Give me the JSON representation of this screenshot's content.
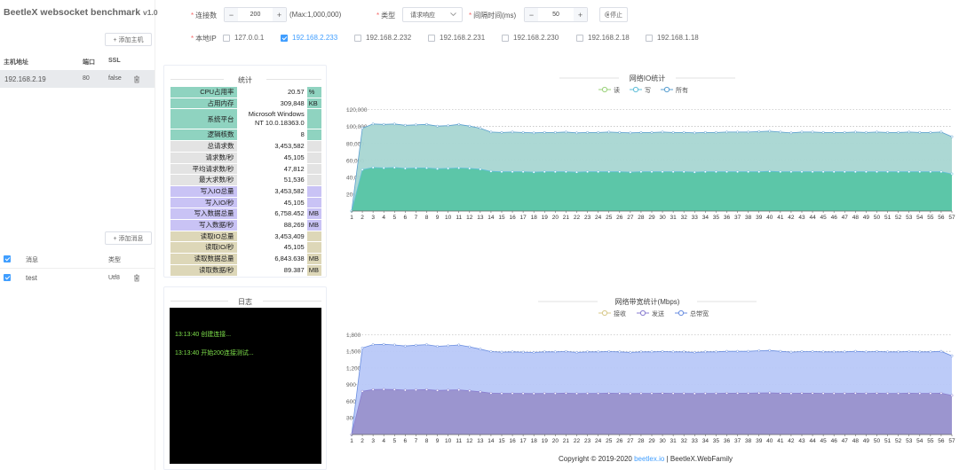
{
  "sidebar": {
    "brand": "BeetleX websocket benchmark",
    "version": "v1.0",
    "add_host_label": "+ 添加主机",
    "host_columns": [
      "主机地址",
      "端口",
      "SSL"
    ],
    "hosts": [
      {
        "address": "192.168.2.19",
        "port": "80",
        "ssl": "false"
      }
    ],
    "add_message_label": "+ 添加消息",
    "message_columns": [
      "消息",
      "类型"
    ],
    "messages": [
      {
        "name": "test",
        "type": "Utf8"
      }
    ]
  },
  "toolbar": {
    "connections_label": "连接数",
    "connections_value": "200",
    "connections_max": "(Max:1,000,000)",
    "type_label": "类型",
    "type_value": "请求响应",
    "interval_label": "间隔时间(ms)",
    "interval_value": "50",
    "stop_label": "停止",
    "local_ip_label": "本地IP",
    "ips": [
      {
        "ip": "127.0.0.1",
        "checked": false
      },
      {
        "ip": "192.168.2.233",
        "checked": true
      },
      {
        "ip": "192.168.2.232",
        "checked": false
      },
      {
        "ip": "192.168.2.231",
        "checked": false
      },
      {
        "ip": "192.168.2.230",
        "checked": false
      },
      {
        "ip": "192.168.2.18",
        "checked": false
      },
      {
        "ip": "192.168.1.18",
        "checked": false
      }
    ]
  },
  "stats": {
    "title": "统计",
    "rows": [
      {
        "key": "CPU占用率",
        "value": "20.57",
        "unit": "%",
        "color": "#8fd3c0"
      },
      {
        "key": "占用内存",
        "value": "309,848",
        "unit": "KB",
        "color": "#8fd3c0"
      },
      {
        "key": "系统平台",
        "value": "Microsoft Windows NT 10.0.18363.0",
        "unit": "",
        "color": "#8fd3c0"
      },
      {
        "key": "逻辑核数",
        "value": "8",
        "unit": "",
        "color": "#8fd3c0"
      },
      {
        "key": "总请求数",
        "value": "3,453,582",
        "unit": "",
        "color": "#e3e3e3"
      },
      {
        "key": "请求数/秒",
        "value": "45,105",
        "unit": "",
        "color": "#e3e3e3"
      },
      {
        "key": "平均请求数/秒",
        "value": "47,812",
        "unit": "",
        "color": "#e3e3e3"
      },
      {
        "key": "最大求数/秒",
        "value": "51,536",
        "unit": "",
        "color": "#e3e3e3"
      },
      {
        "key": "写入IO总量",
        "value": "3,453,582",
        "unit": "",
        "color": "#c9c3f5"
      },
      {
        "key": "写入IO/秒",
        "value": "45,105",
        "unit": "",
        "color": "#c9c3f5"
      },
      {
        "key": "写入数据总量",
        "value": "6,758.452",
        "unit": "MB",
        "color": "#c9c3f5"
      },
      {
        "key": "写入数据/秒",
        "value": "88,269",
        "unit": "MB",
        "color": "#c9c3f5"
      },
      {
        "key": "读取IO总量",
        "value": "3,453,409",
        "unit": "",
        "color": "#ddd7b8"
      },
      {
        "key": "读取IO/秒",
        "value": "45,105",
        "unit": "",
        "color": "#ddd7b8"
      },
      {
        "key": "读取数据总量",
        "value": "6,843.638",
        "unit": "MB",
        "color": "#ddd7b8"
      },
      {
        "key": "读取数据/秒",
        "value": "89.387",
        "unit": "MB",
        "color": "#ddd7b8"
      }
    ]
  },
  "log": {
    "title": "日志",
    "lines": [
      "13:13:40 创建连接...",
      "13:13:40 开始200连接测试..."
    ]
  },
  "footer": {
    "copyright": "Copyright © 2019-2020",
    "link": "beetlex.io",
    "suffix": "| BeetleX.WebFamily"
  },
  "chart_data": [
    {
      "type": "area",
      "title": "网络IO统计",
      "legend": [
        "读",
        "写",
        "所有"
      ],
      "legend_position": "top",
      "colors": [
        "#9ad27a",
        "#61bfd9",
        "#5a9fd0"
      ],
      "fill_colors": [
        "#5cc6a8",
        "#a8d6d2"
      ],
      "x": [
        1,
        2,
        3,
        4,
        5,
        6,
        7,
        8,
        9,
        10,
        11,
        12,
        13,
        14,
        15,
        16,
        17,
        18,
        19,
        20,
        21,
        22,
        23,
        24,
        25,
        26,
        27,
        28,
        29,
        30,
        31,
        32,
        33,
        34,
        35,
        36,
        37,
        38,
        39,
        40,
        41,
        42,
        43,
        44,
        45,
        46,
        47,
        48,
        49,
        50,
        51,
        52,
        53,
        54,
        55,
        56,
        57
      ],
      "yticks": [
        20000,
        40000,
        60000,
        80000,
        100000,
        120000
      ],
      "ytick_labels": [
        "20,000",
        "40,000",
        "60,000",
        "80,000",
        "100,000",
        "120,000"
      ],
      "ylim": [
        0,
        128000
      ],
      "series": [
        {
          "name": "读",
          "values": [
            0,
            49000,
            51500,
            51000,
            51500,
            50500,
            51000,
            51000,
            50000,
            50500,
            51000,
            50500,
            49500,
            47000,
            46500,
            46500,
            46500,
            46000,
            46500,
            46500,
            46500,
            46000,
            46500,
            46500,
            46500,
            46500,
            46000,
            46500,
            46500,
            46500,
            46500,
            46500,
            46000,
            46500,
            46500,
            46500,
            46500,
            46500,
            46500,
            47000,
            46500,
            46500,
            46500,
            46500,
            46500,
            46500,
            46500,
            46500,
            46500,
            46500,
            46500,
            46500,
            46500,
            46500,
            46500,
            46500,
            44000
          ]
        },
        {
          "name": "写",
          "values": [
            0,
            49000,
            51500,
            51000,
            51500,
            50500,
            51000,
            51000,
            50000,
            50500,
            51000,
            50500,
            49500,
            47000,
            46500,
            46500,
            46500,
            46000,
            46500,
            46500,
            46500,
            46000,
            46500,
            46500,
            46500,
            46500,
            46000,
            46500,
            46500,
            46500,
            46500,
            46500,
            46000,
            46500,
            46500,
            46500,
            46500,
            46500,
            46500,
            47000,
            46500,
            46500,
            46500,
            46500,
            46500,
            46500,
            46500,
            46500,
            46500,
            46500,
            46500,
            46500,
            46500,
            46500,
            46500,
            46500,
            44000
          ]
        },
        {
          "name": "所有",
          "values": [
            0,
            98000,
            103000,
            102500,
            103000,
            101500,
            102000,
            102500,
            100500,
            101000,
            102500,
            100500,
            98000,
            93500,
            93000,
            93500,
            93000,
            92500,
            93000,
            93000,
            93500,
            92500,
            93000,
            93000,
            93500,
            93000,
            92500,
            93000,
            93000,
            93500,
            93000,
            93000,
            92500,
            93000,
            93000,
            93500,
            93500,
            93500,
            94000,
            94500,
            93500,
            92500,
            93500,
            93500,
            93000,
            93000,
            93000,
            93500,
            93000,
            93500,
            93000,
            93000,
            93500,
            93000,
            93000,
            93500,
            88000
          ]
        }
      ]
    },
    {
      "type": "area",
      "title": "网络带宽统计(Mbps)",
      "legend": [
        "接收",
        "发送",
        "总带宽"
      ],
      "legend_position": "top",
      "colors": [
        "#d8c98a",
        "#8a7ed0",
        "#6a8ee0"
      ],
      "fill_colors": [
        "#9b95cf",
        "#b8c8f8"
      ],
      "x": [
        1,
        2,
        3,
        4,
        5,
        6,
        7,
        8,
        9,
        10,
        11,
        12,
        13,
        14,
        15,
        16,
        17,
        18,
        19,
        20,
        21,
        22,
        23,
        24,
        25,
        26,
        27,
        28,
        29,
        30,
        31,
        32,
        33,
        34,
        35,
        36,
        37,
        38,
        39,
        40,
        41,
        42,
        43,
        44,
        45,
        46,
        47,
        48,
        49,
        50,
        51,
        52,
        53,
        54,
        55,
        56,
        57
      ],
      "yticks": [
        300,
        600,
        900,
        1200,
        1500,
        1800
      ],
      "ytick_labels": [
        "300",
        "600",
        "900",
        "1,200",
        "1,500",
        "1,800"
      ],
      "ylim": [
        0,
        1950
      ],
      "series": [
        {
          "name": "接收",
          "values": [
            0,
            780,
            810,
            815,
            810,
            800,
            805,
            810,
            795,
            800,
            805,
            790,
            770,
            745,
            740,
            742,
            740,
            738,
            742,
            742,
            745,
            738,
            742,
            742,
            745,
            742,
            738,
            742,
            742,
            745,
            742,
            742,
            738,
            742,
            742,
            745,
            745,
            745,
            748,
            752,
            745,
            740,
            745,
            745,
            742,
            742,
            742,
            745,
            742,
            745,
            742,
            742,
            745,
            742,
            742,
            745,
            705
          ]
        },
        {
          "name": "发送",
          "values": [
            0,
            780,
            810,
            815,
            810,
            800,
            805,
            810,
            795,
            800,
            805,
            790,
            770,
            745,
            740,
            742,
            740,
            738,
            742,
            742,
            745,
            738,
            742,
            742,
            745,
            742,
            738,
            742,
            742,
            745,
            742,
            742,
            738,
            742,
            742,
            745,
            745,
            745,
            748,
            752,
            745,
            740,
            745,
            745,
            742,
            742,
            742,
            745,
            742,
            745,
            742,
            742,
            745,
            742,
            742,
            745,
            705
          ]
        },
        {
          "name": "总带宽",
          "values": [
            0,
            1560,
            1620,
            1625,
            1615,
            1595,
            1610,
            1620,
            1590,
            1600,
            1615,
            1580,
            1540,
            1495,
            1485,
            1490,
            1485,
            1480,
            1490,
            1490,
            1495,
            1480,
            1490,
            1490,
            1495,
            1490,
            1480,
            1490,
            1490,
            1495,
            1490,
            1490,
            1480,
            1490,
            1490,
            1500,
            1500,
            1500,
            1510,
            1515,
            1500,
            1485,
            1495,
            1495,
            1490,
            1490,
            1490,
            1500,
            1490,
            1495,
            1490,
            1490,
            1495,
            1490,
            1490,
            1500,
            1420
          ]
        }
      ]
    }
  ]
}
